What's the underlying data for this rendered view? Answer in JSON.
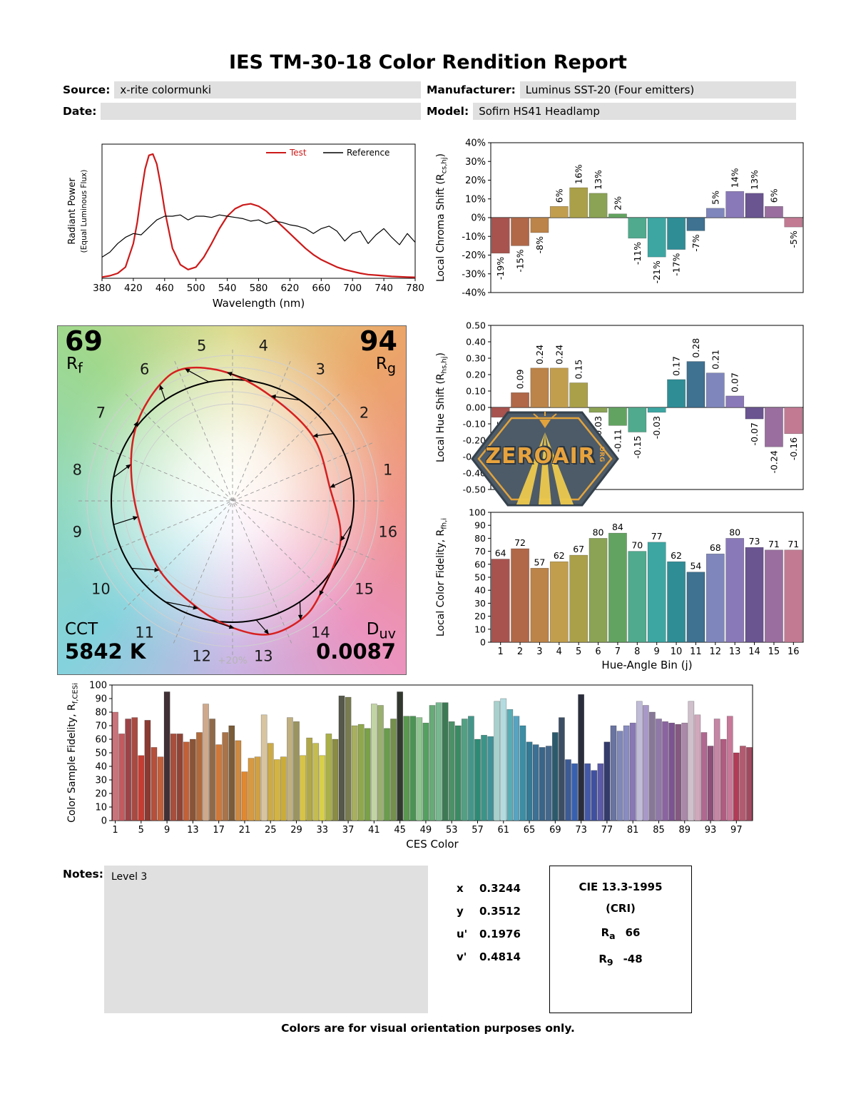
{
  "title": "IES TM-30-18 Color Rendition Report",
  "header": {
    "source_label": "Source:",
    "source_value": "x-rite colormunki",
    "date_label": "Date:",
    "date_value": "",
    "manufacturer_label": "Manufacturer:",
    "manufacturer_value": "Luminus SST-20 (Four emitters)",
    "model_label": "Model:",
    "model_value": "Sofirn HS41 Headlamp"
  },
  "watermark": {
    "name": "ZEROAIR",
    "org": ".ORG"
  },
  "summary": {
    "rf_value": "69",
    "rf_pre": "R",
    "rf_sub": "f",
    "rg_value": "94",
    "rg_pre": "R",
    "rg_sub": "g",
    "cct_label": "CCT",
    "cct_value": "5842 K",
    "duv_pre": "D",
    "duv_sub": "uv",
    "duv_value": "0.0087",
    "ring_label": "+20%"
  },
  "notes": {
    "label": "Notes:",
    "value": "Level 3"
  },
  "chromaticity": {
    "rows": [
      {
        "label": "x",
        "value": "0.3244"
      },
      {
        "label": "y",
        "value": "0.3512"
      },
      {
        "label": "u'",
        "value": "0.1976"
      },
      {
        "label": "v'",
        "value": "0.4814"
      }
    ]
  },
  "cri_box": {
    "title": "CIE 13.3-1995",
    "subtitle": "(CRI)",
    "ra_pre": "R",
    "ra_sub": "a",
    "ra_value": "66",
    "r9_pre": "R",
    "r9_sub": "9",
    "r9_value": "-48"
  },
  "footer": "Colors are for visual orientation purposes only.",
  "hue_bin_colors": [
    "#a8534e",
    "#b06848",
    "#bc8449",
    "#c19e4e",
    "#aaa04a",
    "#8ba355",
    "#63a361",
    "#50aa8d",
    "#3da6a3",
    "#2f8d96",
    "#3f7190",
    "#7f86bb",
    "#8a79b8",
    "#6a5591",
    "#9a6f9f",
    "#c27a93"
  ],
  "chart_data": [
    {
      "id": "spd",
      "type": "line",
      "xlabel": "Wavelength (nm)",
      "ylabel_main": "Radiant Power",
      "ylabel_sub": "(Equal Luminous Flux)",
      "xlim": [
        380,
        780
      ],
      "xticks": [
        380,
        420,
        460,
        500,
        540,
        580,
        620,
        660,
        700,
        740,
        780
      ],
      "ylim": [
        0,
        1.08
      ],
      "legend": [
        "Test",
        "Reference"
      ],
      "series": [
        {
          "name": "Test",
          "color": "#cc1a1a",
          "width": 2.2,
          "x": [
            380,
            390,
            400,
            410,
            420,
            425,
            430,
            435,
            440,
            445,
            450,
            455,
            460,
            470,
            480,
            490,
            500,
            510,
            520,
            530,
            540,
            550,
            560,
            570,
            580,
            590,
            600,
            610,
            620,
            630,
            640,
            650,
            660,
            670,
            680,
            690,
            700,
            710,
            720,
            730,
            740,
            750,
            760,
            770,
            780
          ],
          "y": [
            0.01,
            0.02,
            0.04,
            0.09,
            0.28,
            0.45,
            0.68,
            0.88,
            0.99,
            1.0,
            0.92,
            0.75,
            0.55,
            0.24,
            0.11,
            0.07,
            0.09,
            0.17,
            0.28,
            0.4,
            0.5,
            0.56,
            0.59,
            0.6,
            0.58,
            0.54,
            0.48,
            0.42,
            0.36,
            0.3,
            0.24,
            0.19,
            0.15,
            0.12,
            0.09,
            0.07,
            0.055,
            0.04,
            0.03,
            0.025,
            0.02,
            0.015,
            0.012,
            0.01,
            0.008
          ]
        },
        {
          "name": "Reference",
          "color": "#000000",
          "width": 1.2,
          "x": [
            380,
            390,
            400,
            410,
            420,
            430,
            440,
            450,
            460,
            470,
            480,
            490,
            500,
            510,
            520,
            530,
            540,
            550,
            560,
            570,
            580,
            590,
            600,
            610,
            620,
            630,
            640,
            650,
            660,
            670,
            680,
            690,
            700,
            710,
            720,
            730,
            740,
            750,
            760,
            770,
            780
          ],
          "y": [
            0.17,
            0.21,
            0.28,
            0.33,
            0.36,
            0.35,
            0.41,
            0.47,
            0.5,
            0.5,
            0.51,
            0.47,
            0.5,
            0.5,
            0.49,
            0.51,
            0.5,
            0.49,
            0.48,
            0.46,
            0.47,
            0.44,
            0.46,
            0.45,
            0.43,
            0.42,
            0.4,
            0.36,
            0.4,
            0.42,
            0.38,
            0.3,
            0.36,
            0.38,
            0.28,
            0.35,
            0.4,
            0.33,
            0.27,
            0.36,
            0.29
          ]
        }
      ]
    },
    {
      "id": "chroma_shift",
      "type": "bar",
      "ylabel_pre": "Local Chroma Shift (R",
      "ylabel_sub": "cs,hj",
      "ylabel_post": ")",
      "ylim": [
        -40,
        40
      ],
      "yticks": [
        [
          40,
          "40%"
        ],
        [
          30,
          "30%"
        ],
        [
          20,
          "20%"
        ],
        [
          10,
          "10%"
        ],
        [
          0,
          "0%"
        ],
        [
          -10,
          "-10%"
        ],
        [
          -20,
          "-20%"
        ],
        [
          -30,
          "-30%"
        ],
        [
          -40,
          "-40%"
        ]
      ],
      "values": [
        -19,
        -15,
        -8,
        6,
        16,
        13,
        2,
        -11,
        -21,
        -17,
        -7,
        5,
        14,
        13,
        6,
        -5
      ],
      "bar_labels": [
        "-19%",
        "-15%",
        "-8%",
        "6%",
        "16%",
        "13%",
        "2%",
        "-11%",
        "-21%",
        "-17%",
        "-7%",
        "5%",
        "14%",
        "13%",
        "6%",
        "-5%"
      ]
    },
    {
      "id": "hue_shift",
      "type": "bar",
      "ylabel_pre": "Local Hue Shift (R",
      "ylabel_sub": "hs,hj",
      "ylabel_post": ")",
      "ylim": [
        -0.5,
        0.5
      ],
      "yticks": [
        [
          0.5,
          "0.50"
        ],
        [
          0.4,
          "0.40"
        ],
        [
          0.3,
          "0.30"
        ],
        [
          0.2,
          "0.20"
        ],
        [
          0.1,
          "0.10"
        ],
        [
          0,
          "0.00"
        ],
        [
          -0.1,
          "-0.10"
        ],
        [
          -0.2,
          "-0.20"
        ],
        [
          -0.3,
          "-0.30"
        ],
        [
          -0.4,
          "-0.40"
        ],
        [
          -0.5,
          "-0.50"
        ]
      ],
      "values": [
        -0.06,
        0.09,
        0.24,
        0.24,
        0.15,
        -0.03,
        -0.11,
        -0.15,
        -0.03,
        0.17,
        0.28,
        0.21,
        0.07,
        -0.07,
        -0.24,
        -0.16
      ],
      "bar_labels": [
        "-0.06",
        "0.09",
        "0.24",
        "0.24",
        "0.15",
        "-0.03",
        "-0.11",
        "-0.15",
        "-0.03",
        "0.17",
        "0.28",
        "0.21",
        "0.07",
        "-0.07",
        "-0.24",
        "-0.16"
      ]
    },
    {
      "id": "local_fidelity",
      "type": "bar",
      "ylabel_pre": "Local Color Fidelity, R",
      "ylabel_sub": "fh,i",
      "ylabel_post": "",
      "xlabel": "Hue-Angle Bin (j)",
      "ylim": [
        0,
        100
      ],
      "yticks": [
        [
          100,
          "100"
        ],
        [
          90,
          "90"
        ],
        [
          80,
          "80"
        ],
        [
          70,
          "70"
        ],
        [
          60,
          "60"
        ],
        [
          50,
          "50"
        ],
        [
          40,
          "40"
        ],
        [
          30,
          "30"
        ],
        [
          20,
          "20"
        ],
        [
          10,
          "10"
        ],
        [
          0,
          "0"
        ]
      ],
      "values": [
        64,
        72,
        57,
        62,
        67,
        80,
        84,
        70,
        77,
        62,
        54,
        68,
        80,
        73,
        71,
        71
      ],
      "bar_labels": [
        "64",
        "72",
        "57",
        "62",
        "67",
        "80",
        "84",
        "70",
        "77",
        "62",
        "54",
        "68",
        "80",
        "73",
        "71",
        "71"
      ],
      "xtick_labels": [
        "1",
        "2",
        "3",
        "4",
        "5",
        "6",
        "7",
        "8",
        "9",
        "10",
        "11",
        "12",
        "13",
        "14",
        "15",
        "16"
      ]
    },
    {
      "id": "ces_fidelity",
      "type": "bar",
      "ylabel_pre": "Color Sample Fidelity, R",
      "ylabel_sub": "f,CESi",
      "ylabel_post": "",
      "xlabel": "CES Color",
      "ylim": [
        0,
        100
      ],
      "yticks": [
        [
          100,
          "100"
        ],
        [
          90,
          "90"
        ],
        [
          80,
          "80"
        ],
        [
          70,
          "70"
        ],
        [
          60,
          "60"
        ],
        [
          50,
          "50"
        ],
        [
          40,
          "40"
        ],
        [
          30,
          "30"
        ],
        [
          20,
          "20"
        ],
        [
          10,
          "10"
        ],
        [
          0,
          "0"
        ]
      ],
      "xticks": [
        1,
        5,
        9,
        13,
        17,
        21,
        25,
        29,
        33,
        37,
        41,
        45,
        49,
        53,
        57,
        61,
        65,
        69,
        73,
        77,
        81,
        85,
        89,
        93,
        97
      ],
      "values": [
        80,
        64,
        75,
        76,
        48,
        74,
        54,
        47,
        95,
        64,
        64,
        58,
        60,
        65,
        86,
        75,
        56,
        65,
        70,
        59,
        36,
        46,
        47,
        78,
        57,
        45,
        47,
        76,
        73,
        48,
        61,
        57,
        48,
        64,
        60,
        92,
        91,
        70,
        71,
        68,
        86,
        85,
        68,
        75,
        95,
        77,
        77,
        76,
        72,
        85,
        87,
        87,
        73,
        70,
        75,
        77,
        60,
        63,
        62,
        88,
        90,
        82,
        77,
        70,
        58,
        56,
        54,
        55,
        65,
        76,
        45,
        42,
        93,
        42,
        37,
        42,
        58,
        70,
        66,
        70,
        72,
        88,
        85,
        80,
        75,
        73,
        72,
        71,
        72,
        88,
        78,
        65,
        55,
        75,
        60,
        77,
        50,
        55,
        54
      ],
      "colors": [
        "#c9737a",
        "#c25a60",
        "#9c4348",
        "#a84a42",
        "#c63c30",
        "#8a3a32",
        "#b5503c",
        "#c2603c",
        "#413136",
        "#a84e3c",
        "#8e4436",
        "#c26038",
        "#8a5436",
        "#b06a3c",
        "#cfa98c",
        "#8f6a4a",
        "#d07838",
        "#a87448",
        "#7a5c3a",
        "#cc8a42",
        "#e08830",
        "#d89a40",
        "#d0a044",
        "#d8c4a0",
        "#ccaa48",
        "#d4b440",
        "#ccac38",
        "#c0b080",
        "#9a9460",
        "#d8c444",
        "#b0a848",
        "#c4bc50",
        "#d8d048",
        "#aab048",
        "#8a8c44",
        "#55584a",
        "#787c50",
        "#a8b060",
        "#90a84c",
        "#7aa048",
        "#c2d4a4",
        "#9ab070",
        "#6a9c4c",
        "#74904c",
        "#32382e",
        "#5a9850",
        "#4c9454",
        "#90c490",
        "#54a060",
        "#68aa78",
        "#78b890",
        "#3c7a54",
        "#4c9068",
        "#3a8a64",
        "#52a083",
        "#44968a",
        "#2e8a74",
        "#3c9488",
        "#409298",
        "#a8d0cc",
        "#b4dce0",
        "#5aacb4",
        "#58a4c0",
        "#3c8ea4",
        "#347a94",
        "#3c7094",
        "#3a6488",
        "#44688c",
        "#2c5a6c",
        "#3c4e64",
        "#3c5a94",
        "#3860b0",
        "#2a2e3c",
        "#4458a8",
        "#4050a0",
        "#5a5aa8",
        "#343c6c",
        "#6a74a0",
        "#8088b8",
        "#888cc0",
        "#8878b4",
        "#c0bcd8",
        "#a898c8",
        "#887898",
        "#9078a8",
        "#8a64a0",
        "#7c5490",
        "#845880",
        "#aa88a8",
        "#d0c0cc",
        "#d0a8bc",
        "#b06890",
        "#8c5078",
        "#c487a4",
        "#b05c80",
        "#c87898",
        "#b03c58",
        "#b45a70",
        "#a04a60"
      ]
    },
    {
      "id": "cvg",
      "type": "color_vector_graphic",
      "bins": 16,
      "bin_labels": [
        "1",
        "2",
        "3",
        "4",
        "5",
        "6",
        "7",
        "8",
        "9",
        "10",
        "11",
        "12",
        "13",
        "14",
        "15",
        "16"
      ],
      "reference_color": "#000000",
      "test_color": "#d62020"
    }
  ]
}
